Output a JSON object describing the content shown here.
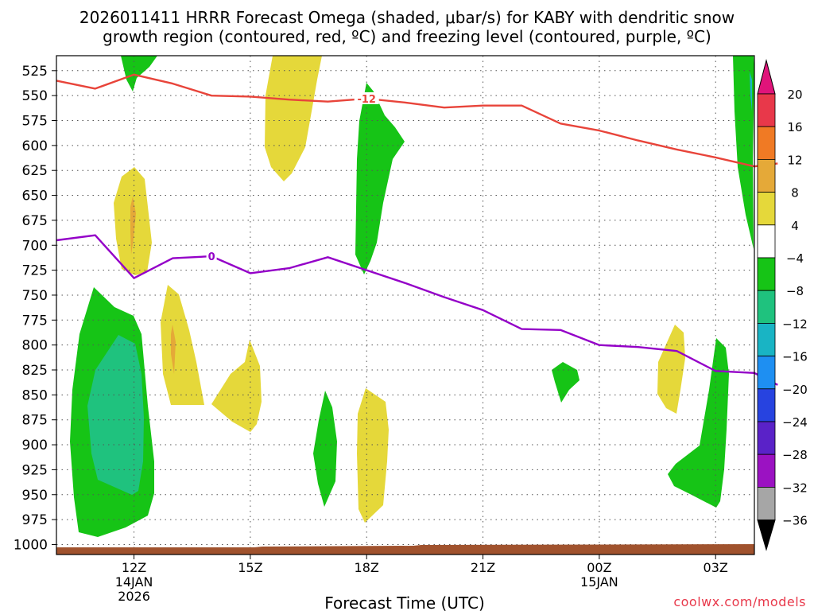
{
  "chart_data": {
    "type": "contour",
    "title_line1": "2026011411 HRRR Forecast Omega (shaded, μbar/s) for KABY with dendritic snow",
    "title_line2": "growth region (contoured, red, ºC) and freezing level (contoured, purple, ºC)",
    "xlabel": "Forecast Time (UTC)",
    "watermark": "coolwx.com/models",
    "x_range_hours": [
      10,
      28
    ],
    "x_ticks": [
      {
        "hour": 12,
        "label": "12Z",
        "sub1": "14JAN",
        "sub2": "2026"
      },
      {
        "hour": 15,
        "label": "15Z",
        "sub1": "",
        "sub2": ""
      },
      {
        "hour": 18,
        "label": "18Z",
        "sub1": "",
        "sub2": ""
      },
      {
        "hour": 21,
        "label": "21Z",
        "sub1": "",
        "sub2": ""
      },
      {
        "hour": 24,
        "label": "00Z",
        "sub1": "15JAN",
        "sub2": ""
      },
      {
        "hour": 27,
        "label": "03Z",
        "sub1": "",
        "sub2": ""
      }
    ],
    "y_range_mb": [
      1010,
      510
    ],
    "y_ticks": [
      525,
      550,
      575,
      600,
      625,
      650,
      675,
      700,
      725,
      750,
      775,
      800,
      825,
      850,
      875,
      900,
      925,
      950,
      975,
      1000
    ],
    "colorbar": {
      "labels": [
        "20",
        "16",
        "12",
        "8",
        "4",
        "−4",
        "−8",
        "−12",
        "−16",
        "−20",
        "−24",
        "−28",
        "−32",
        "−36"
      ],
      "colors": [
        "#e8384a",
        "#f07a24",
        "#e5a938",
        "#e5d83a",
        "#ffffff",
        "#16c416",
        "#1fc27e",
        "#19b4c4",
        "#1e8ff2",
        "#2743e0",
        "#5a22c8",
        "#9b12c2",
        "#a6a6a6"
      ],
      "top_arrow_color": "#e0147a",
      "bottom_arrow_color": "#000000"
    },
    "isotherm_minus12": {
      "label": "-12",
      "color": "#e8443a",
      "points": [
        [
          10,
          535
        ],
        [
          11,
          543
        ],
        [
          12,
          529
        ],
        [
          13,
          538
        ],
        [
          14,
          550
        ],
        [
          15,
          551
        ],
        [
          16,
          554
        ],
        [
          17,
          556
        ],
        [
          18,
          553
        ],
        [
          19,
          557
        ],
        [
          20,
          562
        ],
        [
          21,
          560
        ],
        [
          22,
          560
        ],
        [
          23,
          578
        ],
        [
          24,
          585
        ],
        [
          25,
          595
        ],
        [
          26,
          604
        ],
        [
          27,
          612
        ],
        [
          28,
          621
        ],
        [
          28.6,
          618
        ]
      ]
    },
    "isotherm_0": {
      "label": "0",
      "color": "#9400c8",
      "points": [
        [
          10,
          695
        ],
        [
          11,
          690
        ],
        [
          12,
          733
        ],
        [
          13,
          713
        ],
        [
          14,
          711
        ],
        [
          15,
          728
        ],
        [
          16,
          723
        ],
        [
          17,
          712
        ],
        [
          18,
          725
        ],
        [
          19,
          738
        ],
        [
          20,
          752
        ],
        [
          21,
          765
        ],
        [
          22,
          784
        ],
        [
          23,
          785
        ],
        [
          24,
          800
        ],
        [
          25,
          802
        ],
        [
          26,
          806
        ],
        [
          27,
          826
        ],
        [
          28,
          828
        ],
        [
          28.6,
          840
        ]
      ]
    },
    "ground_color": "#a0522d"
  }
}
